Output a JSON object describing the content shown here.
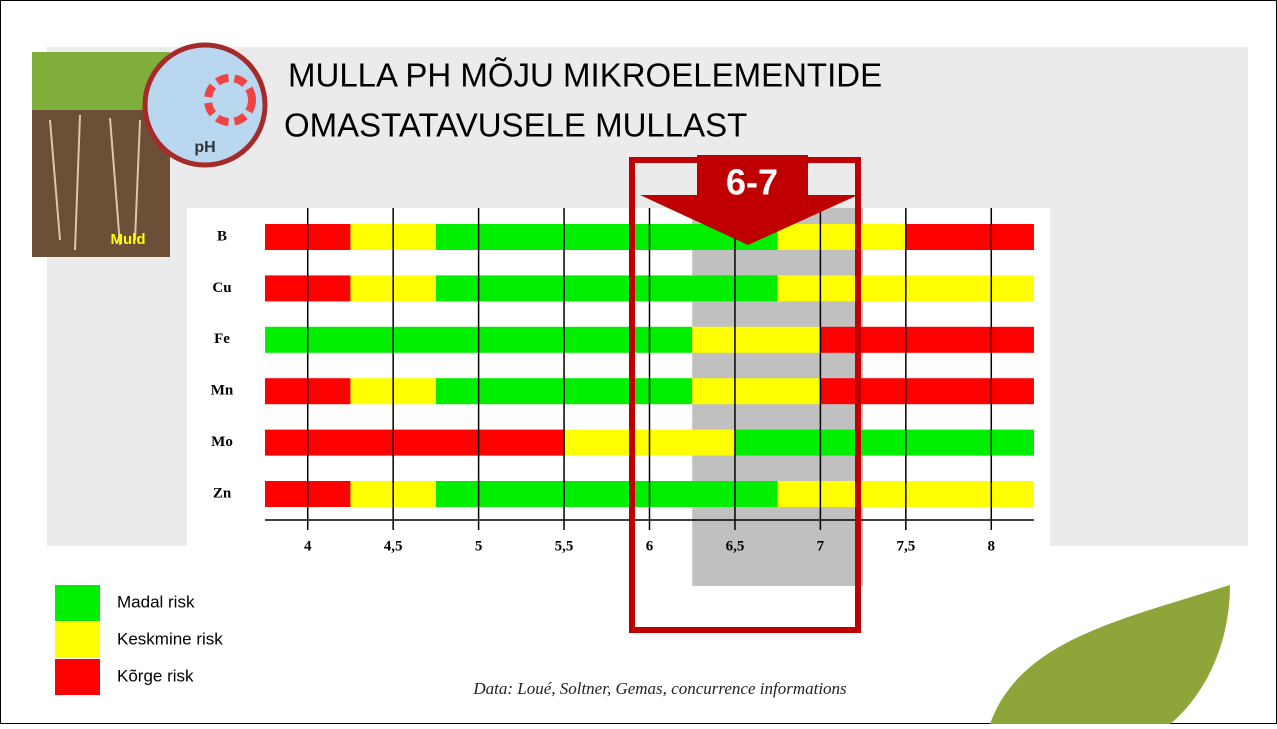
{
  "header": {
    "title_lines": [
      "MULLA PH MÕJU MIKROELEMENTIDE",
      "OMASTATAVUSELE MULLAST"
    ],
    "image_label": "Muld",
    "badge_label": "pH"
  },
  "chart_data": {
    "type": "range-bar",
    "categories": [
      "B",
      "Cu",
      "Fe",
      "Mn",
      "Mo",
      "Zn"
    ],
    "risks": [
      {
        "name": "Madal risk",
        "color": "#00ee00"
      },
      {
        "name": "Keskmine risk",
        "color": "#ffff00"
      },
      {
        "name": "Kõrge risk",
        "color": "#ff0000"
      }
    ],
    "segments": [
      [
        {
          "start": 3.75,
          "end": 4.25,
          "risk": 2
        },
        {
          "start": 4.25,
          "end": 4.75,
          "risk": 1
        },
        {
          "start": 4.75,
          "end": 6.75,
          "risk": 0
        },
        {
          "start": 6.75,
          "end": 7.5,
          "risk": 1
        },
        {
          "start": 7.5,
          "end": 8.25,
          "risk": 2
        }
      ],
      [
        {
          "start": 3.75,
          "end": 4.25,
          "risk": 2
        },
        {
          "start": 4.25,
          "end": 4.75,
          "risk": 1
        },
        {
          "start": 4.75,
          "end": 6.75,
          "risk": 0
        },
        {
          "start": 6.75,
          "end": 8.25,
          "risk": 1
        }
      ],
      [
        {
          "start": 3.75,
          "end": 6.25,
          "risk": 0
        },
        {
          "start": 6.25,
          "end": 7,
          "risk": 1
        },
        {
          "start": 7,
          "end": 8.25,
          "risk": 2
        }
      ],
      [
        {
          "start": 3.75,
          "end": 4.25,
          "risk": 2
        },
        {
          "start": 4.25,
          "end": 4.75,
          "risk": 1
        },
        {
          "start": 4.75,
          "end": 6.25,
          "risk": 0
        },
        {
          "start": 6.25,
          "end": 7,
          "risk": 1
        },
        {
          "start": 7,
          "end": 8.25,
          "risk": 2
        }
      ],
      [
        {
          "start": 3.75,
          "end": 5.5,
          "risk": 2
        },
        {
          "start": 5.5,
          "end": 6.5,
          "risk": 1
        },
        {
          "start": 6.5,
          "end": 8.25,
          "risk": 0
        }
      ],
      [
        {
          "start": 3.75,
          "end": 4.25,
          "risk": 2
        },
        {
          "start": 4.25,
          "end": 4.75,
          "risk": 1
        },
        {
          "start": 4.75,
          "end": 6.75,
          "risk": 0
        },
        {
          "start": 6.75,
          "end": 8.25,
          "risk": 1
        }
      ]
    ],
    "xlim": [
      3.75,
      8.25
    ],
    "xticks": [
      4,
      {
        "value": 4.5,
        "label": "4,5"
      },
      5,
      {
        "value": 5.5,
        "label": "5,5"
      },
      6,
      {
        "value": 6.5,
        "label": "6,5"
      },
      7,
      {
        "value": 7.5,
        "label": "7,5"
      },
      8
    ],
    "grid": true,
    "highlight": {
      "range": [
        6.25,
        7.25
      ],
      "label": "6-7"
    },
    "source": "Data: Loué, Soltner, Gemas, concurrence informations"
  }
}
